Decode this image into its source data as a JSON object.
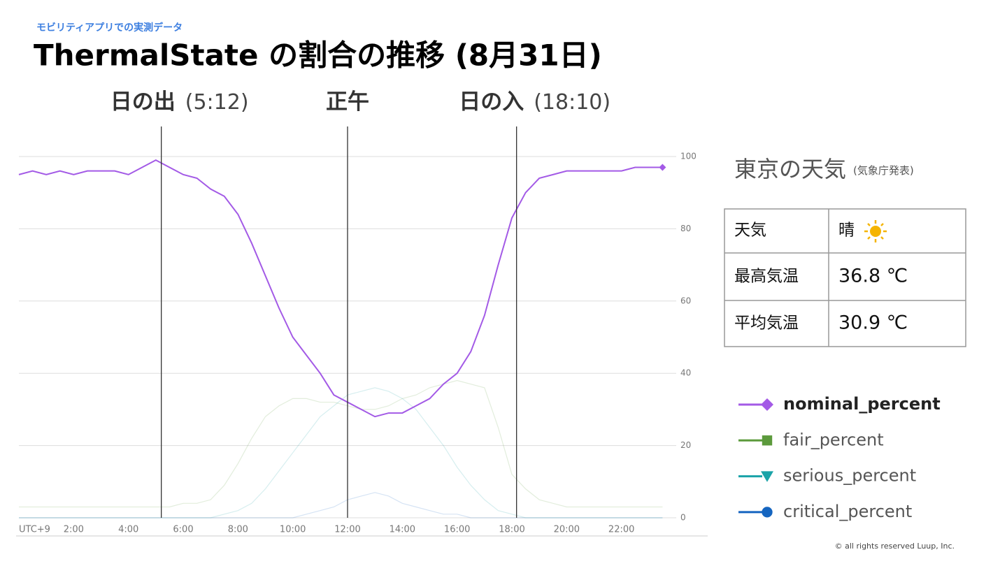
{
  "header": {
    "subtitle": "モビリティアプリでの実測データ",
    "title": "ThermalState の割合の推移 (8月31日)"
  },
  "chart_data": {
    "type": "line",
    "annotations": [
      {
        "label": "日の出",
        "time": "(5:12)",
        "x": 5.2
      },
      {
        "label": "正午",
        "x": 12
      },
      {
        "label": "日の入",
        "time": "(18:10)",
        "x": 18.17
      }
    ],
    "x": [
      0,
      0.5,
      1,
      1.5,
      2,
      2.5,
      3,
      3.5,
      4,
      4.5,
      5,
      5.5,
      6,
      6.5,
      7,
      7.5,
      8,
      8.5,
      9,
      9.5,
      10,
      10.5,
      11,
      11.5,
      12,
      12.5,
      13,
      13.5,
      14,
      14.5,
      15,
      15.5,
      16,
      16.5,
      17,
      17.5,
      18,
      18.5,
      19,
      19.5,
      20,
      20.5,
      21,
      21.5,
      22,
      22.5,
      23,
      23.5
    ],
    "series": [
      {
        "name": "nominal_percent",
        "color": "#a35ae6",
        "marker": "diamond",
        "values": [
          95,
          96,
          95,
          96,
          95,
          96,
          96,
          96,
          95,
          97,
          99,
          97,
          95,
          94,
          91,
          89,
          84,
          76,
          67,
          58,
          50,
          45,
          40,
          34,
          32,
          30,
          28,
          29,
          29,
          31,
          33,
          37,
          40,
          46,
          56,
          70,
          83,
          90,
          94,
          95,
          96,
          96,
          96,
          96,
          96,
          97,
          97,
          97
        ]
      },
      {
        "name": "fair_percent",
        "color": "#5c9a3c",
        "marker": "square",
        "values": [
          3,
          3,
          3,
          3,
          3,
          3,
          3,
          3,
          3,
          3,
          3,
          3,
          4,
          4,
          5,
          9,
          15,
          22,
          28,
          31,
          33,
          33,
          32,
          32,
          31,
          30,
          30,
          31,
          33,
          34,
          36,
          37,
          38,
          37,
          36,
          25,
          12,
          8,
          5,
          4,
          3,
          3,
          3,
          3,
          3,
          3,
          3,
          3
        ]
      },
      {
        "name": "serious_percent",
        "color": "#1aa3a8",
        "marker": "triangle",
        "values": [
          0,
          0,
          0,
          0,
          0,
          0,
          0,
          0,
          0,
          0,
          0,
          0,
          0,
          0,
          0,
          1,
          2,
          4,
          8,
          13,
          18,
          23,
          28,
          31,
          34,
          35,
          36,
          35,
          33,
          30,
          25,
          20,
          14,
          9,
          5,
          2,
          1,
          0,
          0,
          0,
          0,
          0,
          0,
          0,
          0,
          0,
          0,
          0
        ]
      },
      {
        "name": "critical_percent",
        "color": "#1565c0",
        "marker": "circle",
        "values": [
          0,
          0,
          0,
          0,
          0,
          0,
          0,
          0,
          0,
          0,
          0,
          0,
          0,
          0,
          0,
          0,
          0,
          0,
          0,
          0,
          0,
          1,
          2,
          3,
          5,
          6,
          7,
          6,
          4,
          3,
          2,
          1,
          1,
          0,
          0,
          0,
          0,
          0,
          0,
          0,
          0,
          0,
          0,
          0,
          0,
          0,
          0,
          0
        ]
      }
    ],
    "xlim": [
      0,
      24
    ],
    "xticks": [
      {
        "value": 0,
        "label": "UTC+9"
      },
      {
        "value": 2,
        "label": "2:00"
      },
      {
        "value": 4,
        "label": "4:00"
      },
      {
        "value": 6,
        "label": "6:00"
      },
      {
        "value": 8,
        "label": "8:00"
      },
      {
        "value": 10,
        "label": "10:00"
      },
      {
        "value": 12,
        "label": "12:00"
      },
      {
        "value": 14,
        "label": "14:00"
      },
      {
        "value": 16,
        "label": "16:00"
      },
      {
        "value": 18,
        "label": "18:00"
      },
      {
        "value": 20,
        "label": "20:00"
      },
      {
        "value": 22,
        "label": "22:00"
      }
    ],
    "ylim": [
      0,
      100
    ],
    "yticks": [
      0,
      20,
      40,
      60,
      80,
      100
    ],
    "grid": true
  },
  "weather": {
    "title": "東京の天気",
    "source": "(気象庁発表)",
    "rows": [
      [
        "天気",
        "晴"
      ],
      [
        "最高気温",
        "36.8 ℃"
      ],
      [
        "平均気温",
        "30.9 ℃"
      ]
    ]
  },
  "footer": "© all rights reserved Luup, Inc."
}
